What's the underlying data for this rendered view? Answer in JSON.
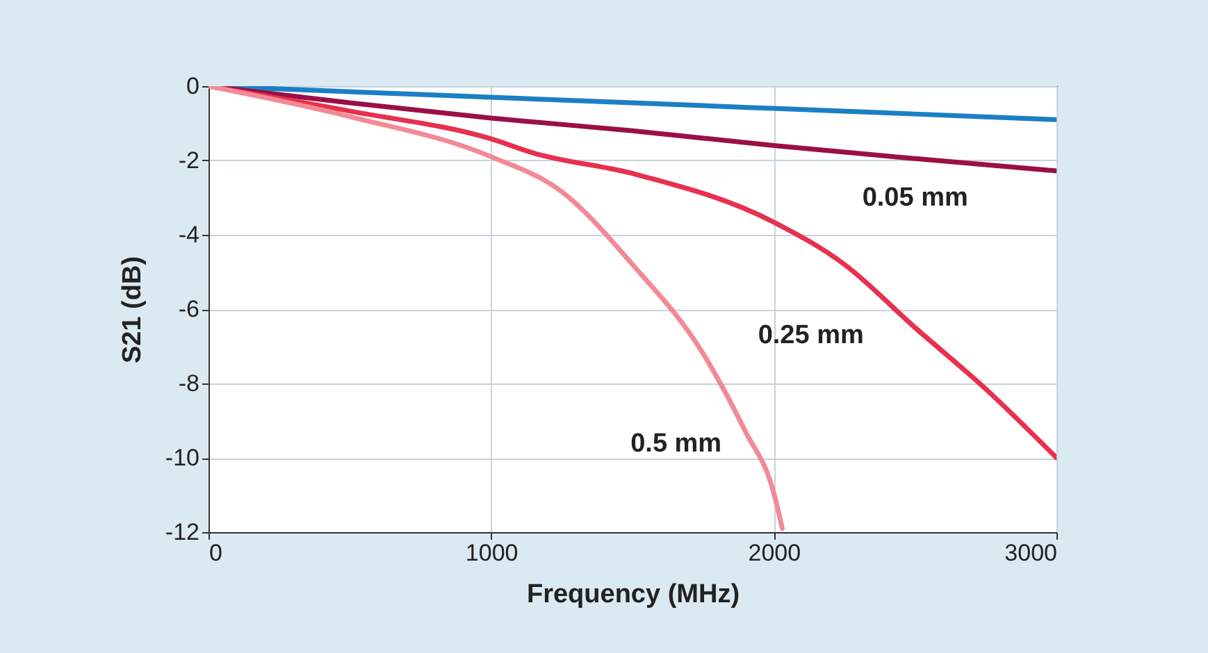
{
  "chart_data": {
    "type": "line",
    "xlabel": "Frequency (MHz)",
    "ylabel": "S21 (dB)",
    "xlim": [
      0,
      3000
    ],
    "xticks": [
      0,
      1000,
      2000,
      3000
    ],
    "ylim": [
      -12,
      0
    ],
    "yticks": [
      -12,
      -10,
      -8,
      -6,
      -4,
      -2,
      0
    ],
    "grid": true,
    "marker": "none",
    "line_style": "solid",
    "series": [
      {
        "color": "#1b7fc4",
        "x": [
          0,
          500,
          1000,
          1500,
          2000,
          2500,
          3000
        ],
        "values": [
          0,
          -0.15,
          -0.3,
          -0.45,
          -0.6,
          -0.75,
          -0.9
        ]
      },
      {
        "name": "0.05 mm",
        "color": "#9b0f45",
        "x": [
          0,
          500,
          1000,
          1500,
          2000,
          2500,
          3000
        ],
        "values": [
          0,
          -0.45,
          -0.86,
          -1.2,
          -1.6,
          -1.95,
          -2.28
        ]
      },
      {
        "name": "0.25 mm",
        "color": "#e8304f",
        "x": [
          0,
          500,
          1000,
          1150,
          1500,
          2000,
          2250,
          2500,
          2750,
          3000
        ],
        "values": [
          0,
          -0.67,
          -1.42,
          -1.8,
          -2.35,
          -3.66,
          -4.8,
          -6.5,
          -8.15,
          -10
        ]
      },
      {
        "name": "0.5 mm",
        "color": "#f28a96",
        "x": [
          0,
          500,
          1000,
          1250,
          1500,
          1750,
          1900,
          2000,
          2030
        ],
        "values": [
          0,
          -0.82,
          -1.9,
          -2.84,
          -4.8,
          -7.2,
          -9.3,
          -10.95,
          -11.9
        ]
      }
    ]
  }
}
